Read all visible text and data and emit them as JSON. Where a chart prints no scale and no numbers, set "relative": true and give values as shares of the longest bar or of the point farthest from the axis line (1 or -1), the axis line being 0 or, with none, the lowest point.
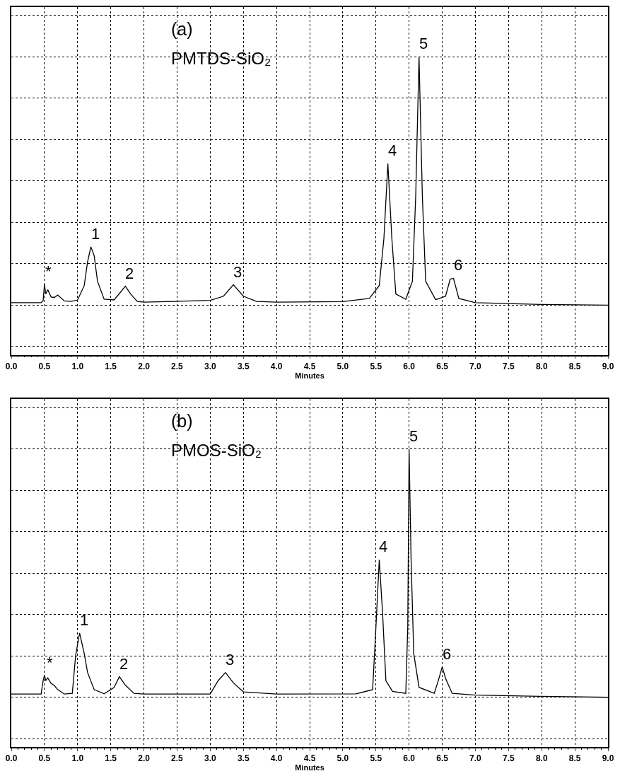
{
  "chart_data": [
    {
      "type": "line",
      "relative": true,
      "xlabel": "Minutes",
      "grid": true,
      "tick_labels": "x",
      "marker": "none",
      "line_style": "solid",
      "xlim": [
        0,
        9
      ],
      "xticks": [
        {
          "value": 0,
          "label": "0.0"
        },
        0.5,
        {
          "value": 1,
          "label": "1.0"
        },
        1.5,
        {
          "value": 2,
          "label": "2.0"
        },
        2.5,
        {
          "value": 3,
          "label": "3.0"
        },
        3.5,
        {
          "value": 4,
          "label": "4.0"
        },
        4.5,
        {
          "value": 5,
          "label": "5.0"
        },
        5.5,
        {
          "value": 6,
          "label": "6.0"
        },
        6.5,
        {
          "value": 7,
          "label": "7.0"
        },
        7.5,
        {
          "value": 8,
          "label": "8.0"
        },
        8.5,
        {
          "value": 9,
          "label": "9.0"
        }
      ],
      "series": [
        {
          "color": "#000000",
          "x": [
            0,
            0.45,
            0.48,
            0.5,
            0.52,
            0.55,
            0.6,
            0.65,
            0.7,
            0.8,
            0.9,
            1.0,
            1.1,
            1.15,
            1.2,
            1.25,
            1.3,
            1.4,
            1.55,
            1.65,
            1.72,
            1.8,
            1.9,
            2.0,
            3.0,
            3.2,
            3.35,
            3.5,
            3.7,
            4.0,
            5.0,
            5.4,
            5.55,
            5.62,
            5.68,
            5.74,
            5.8,
            5.95,
            6.05,
            6.1,
            6.15,
            6.2,
            6.25,
            6.4,
            6.55,
            6.62,
            6.67,
            6.75,
            7.0,
            8.0,
            9.0
          ],
          "values": [
            0.01,
            0.01,
            0.019,
            0.084,
            0.045,
            0.062,
            0.033,
            0.031,
            0.041,
            0.017,
            0.015,
            0.021,
            0.079,
            0.174,
            0.235,
            0.199,
            0.096,
            0.024,
            0.021,
            0.053,
            0.076,
            0.045,
            0.015,
            0.012,
            0.019,
            0.036,
            0.082,
            0.036,
            0.015,
            0.012,
            0.014,
            0.027,
            0.079,
            0.268,
            0.57,
            0.268,
            0.045,
            0.024,
            0.096,
            0.44,
            1.0,
            0.44,
            0.096,
            0.022,
            0.036,
            0.105,
            0.108,
            0.027,
            0.01,
            0.003,
            0
          ]
        }
      ],
      "annotations": [
        "(a)",
        "PMTDS-SiO₂",
        {
          "text": "*",
          "x": 0.5,
          "y": 0.084
        },
        {
          "text": "1",
          "x": 1.2,
          "y": 0.235
        },
        {
          "text": "2",
          "x": 1.72,
          "y": 0.076
        },
        {
          "text": "3",
          "x": 3.35,
          "y": 0.082
        },
        {
          "text": "4",
          "x": 5.68,
          "y": 0.57
        },
        {
          "text": "5",
          "x": 6.15,
          "y": 1.0
        },
        {
          "text": "6",
          "x": 6.67,
          "y": 0.108
        }
      ]
    },
    {
      "type": "line",
      "relative": true,
      "xlabel": "Minutes",
      "grid": true,
      "tick_labels": "x",
      "marker": "none",
      "line_style": "solid",
      "xlim": [
        0,
        9
      ],
      "xticks": [
        {
          "value": 0,
          "label": "0.0"
        },
        0.5,
        {
          "value": 1,
          "label": "1.0"
        },
        1.5,
        {
          "value": 2,
          "label": "2.0"
        },
        2.5,
        {
          "value": 3,
          "label": "3.0"
        },
        3.5,
        {
          "value": 4,
          "label": "4.0"
        },
        4.5,
        {
          "value": 5,
          "label": "5.0"
        },
        5.5,
        {
          "value": 6,
          "label": "6.0"
        },
        6.5,
        {
          "value": 7,
          "label": "7.0"
        },
        7.5,
        {
          "value": 8,
          "label": "8.0"
        },
        8.5,
        {
          "value": 9,
          "label": "9.0"
        }
      ],
      "series": [
        {
          "color": "#000000",
          "x": [
            0,
            0.45,
            0.48,
            0.5,
            0.52,
            0.55,
            0.6,
            0.65,
            0.7,
            0.8,
            0.92,
            0.97,
            1.03,
            1.1,
            1.15,
            1.25,
            1.4,
            1.55,
            1.63,
            1.72,
            1.85,
            2.0,
            3.0,
            3.12,
            3.23,
            3.35,
            3.5,
            4.0,
            5.2,
            5.45,
            5.5,
            5.55,
            5.6,
            5.65,
            5.75,
            5.95,
            5.98,
            6.0,
            6.03,
            6.07,
            6.15,
            6.38,
            6.45,
            6.5,
            6.55,
            6.65,
            7.0,
            8.0,
            9.0
          ],
          "values": [
            0.013,
            0.013,
            0.067,
            0.089,
            0.067,
            0.078,
            0.056,
            0.047,
            0.031,
            0.013,
            0.016,
            0.168,
            0.259,
            0.176,
            0.1,
            0.031,
            0.014,
            0.04,
            0.083,
            0.049,
            0.016,
            0.013,
            0.013,
            0.067,
            0.1,
            0.058,
            0.022,
            0.013,
            0.014,
            0.031,
            0.284,
            0.554,
            0.339,
            0.067,
            0.024,
            0.016,
            0.284,
            1.0,
            0.556,
            0.176,
            0.04,
            0.016,
            0.076,
            0.123,
            0.076,
            0.016,
            0.009,
            0.004,
            0
          ]
        }
      ],
      "annotations": [
        "(b)",
        "PMOS-SiO₂",
        {
          "text": "*",
          "x": 0.52,
          "y": 0.089
        },
        {
          "text": "1",
          "x": 1.03,
          "y": 0.259
        },
        {
          "text": "2",
          "x": 1.63,
          "y": 0.083
        },
        {
          "text": "3",
          "x": 3.23,
          "y": 0.1
        },
        {
          "text": "4",
          "x": 5.55,
          "y": 0.554
        },
        {
          "text": "5",
          "x": 6.0,
          "y": 1.0
        },
        {
          "text": "6",
          "x": 6.5,
          "y": 0.123
        }
      ]
    }
  ]
}
